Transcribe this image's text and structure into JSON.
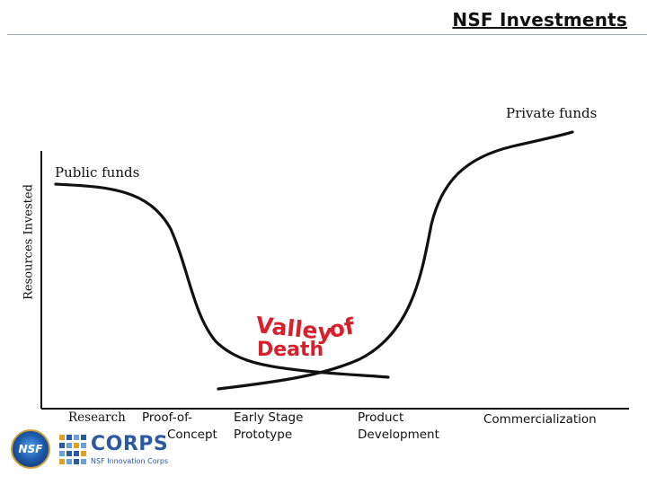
{
  "title": "NSF Investments",
  "y_axis_label": "Resources Invested",
  "curve_labels": {
    "private": "Private funds",
    "public": "Public funds"
  },
  "valley": {
    "line1": "Valley of",
    "line1_a": "Valley",
    "line1_b": "of",
    "line2": "Death"
  },
  "stages": [
    {
      "line1": "Research",
      "line2": ""
    },
    {
      "line1": "Proof-of-",
      "line2": "Concept"
    },
    {
      "line1": "Early Stage",
      "line2": "Prototype"
    },
    {
      "line1": "Product",
      "line2": "Development"
    },
    {
      "line1": "Commercialization",
      "line2": ""
    }
  ],
  "logos": {
    "nsf_seal": "NSF",
    "corps_word": "CORPS",
    "corps_sub": "NSF Innovation Corps"
  },
  "colors": {
    "curve": "#111111",
    "valley_text": "#d8202c",
    "corps_blue": "#2b5aa0"
  }
}
